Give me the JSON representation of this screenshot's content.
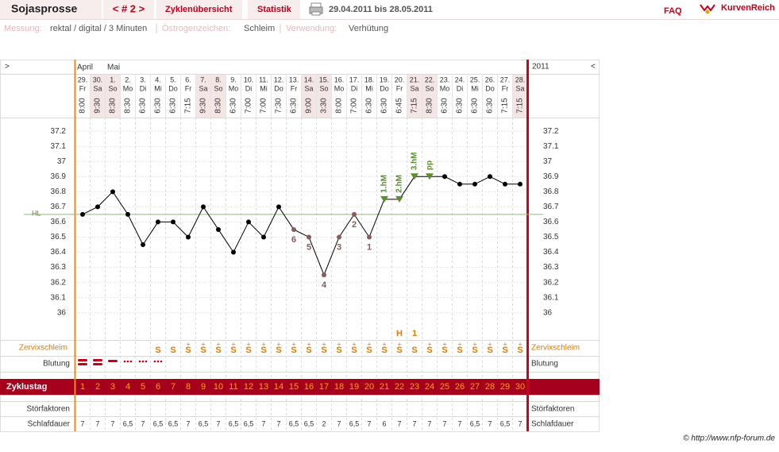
{
  "header": {
    "title": "Sojasprosse",
    "nav": "< # 2 >",
    "tabs": [
      "Zyklenübersicht",
      "Statistik"
    ],
    "range": "29.04.2011 bis 28.05.2011",
    "faq": "FAQ",
    "brand": "KurvenReich"
  },
  "info": [
    {
      "label": "Messung:",
      "value": "rektal / digital / 3 Minuten"
    },
    {
      "label": "Östrogenzeichen:",
      "value": "Schleim"
    },
    {
      "label": "Verwendung:",
      "value": "Verhütung"
    }
  ],
  "chart_data": {
    "type": "line",
    "nav_left": ">",
    "nav_right": "<",
    "year": "2011",
    "months": [
      "April",
      null,
      "Mai",
      null,
      null,
      null,
      null,
      null,
      null,
      null,
      null,
      null,
      null,
      null,
      null,
      null,
      null,
      null,
      null,
      null,
      null,
      null,
      null,
      null,
      null,
      null,
      null,
      null,
      null,
      null
    ],
    "categories": [
      "29.",
      "30.",
      "1.",
      "2.",
      "3.",
      "4.",
      "5.",
      "6.",
      "7.",
      "8.",
      "9.",
      "10.",
      "11.",
      "12.",
      "13.",
      "14.",
      "15.",
      "16.",
      "17.",
      "18.",
      "19.",
      "20.",
      "21.",
      "22.",
      "23.",
      "24.",
      "25.",
      "26.",
      "27.",
      "28."
    ],
    "weekdays": [
      "Fr",
      "Sa",
      "So",
      "Mo",
      "Di",
      "Mi",
      "Do",
      "Fr",
      "Sa",
      "So",
      "Mo",
      "Di",
      "Mi",
      "Do",
      "Fr",
      "Sa",
      "So",
      "Mo",
      "Di",
      "Mi",
      "Do",
      "Fr",
      "Sa",
      "So",
      "Mo",
      "Di",
      "Mi",
      "Do",
      "Fr",
      "Sa"
    ],
    "times": [
      "8:00",
      "9:30",
      "8:30",
      "8:30",
      "6:30",
      "6:30",
      "6:30",
      "7:15",
      "9:30",
      "8:30",
      "6:30",
      "7:00",
      "7:00",
      "7:30",
      "6:30",
      "9:00",
      "3:30",
      "8:00",
      "7:00",
      "6:30",
      "6:30",
      "6:45",
      "7:15",
      "8:30",
      "6:30",
      "6:30",
      "6:30",
      "6:30",
      "7:15",
      "7:15"
    ],
    "values": [
      36.65,
      36.7,
      36.8,
      36.65,
      36.45,
      36.6,
      36.6,
      36.5,
      36.7,
      36.55,
      36.4,
      36.6,
      36.5,
      36.7,
      36.55,
      36.5,
      36.25,
      36.5,
      36.65,
      36.5,
      36.75,
      36.75,
      36.9,
      36.9,
      36.9,
      36.85,
      36.85,
      36.9,
      36.85,
      36.85
    ],
    "point_labels": [
      null,
      null,
      null,
      null,
      null,
      null,
      null,
      null,
      null,
      null,
      null,
      null,
      null,
      null,
      6,
      5,
      4,
      3,
      2,
      1,
      null,
      null,
      null,
      null,
      null,
      null,
      null,
      null,
      null,
      null
    ],
    "markers": [
      null,
      null,
      null,
      null,
      null,
      null,
      null,
      null,
      null,
      null,
      null,
      null,
      null,
      null,
      null,
      null,
      null,
      null,
      null,
      null,
      "1.hM",
      "2.hM",
      "3.hM",
      "pp",
      null,
      null,
      null,
      null,
      null,
      null
    ],
    "color": "#000000",
    "low_color": "#8b5a5a",
    "marker_color": "#5a8f2f",
    "hl": {
      "label": "HL",
      "value": 36.65,
      "color": "#8fbf6f"
    },
    "ylim": [
      35.82,
      37.29
    ],
    "yticks": [
      36,
      36.1,
      36.2,
      36.3,
      36.4,
      36.5,
      36.6,
      36.7,
      36.8,
      36.9,
      37,
      37.1,
      37.2
    ],
    "grid": true
  },
  "rows": {
    "zervix": {
      "label": "Zervixschleim",
      "peak": [
        null,
        null,
        null,
        null,
        null,
        null,
        null,
        null,
        null,
        null,
        null,
        null,
        null,
        null,
        null,
        null,
        null,
        null,
        null,
        null,
        null,
        "H",
        "1",
        null,
        null,
        null,
        null,
        null,
        null,
        null
      ],
      "cells": [
        null,
        null,
        null,
        null,
        null,
        {
          "sign": "S"
        },
        {
          "sign": "S"
        },
        {
          "plus": "+",
          "sign": "S"
        },
        {
          "plus": "+",
          "sign": "S"
        },
        {
          "plus": "+",
          "sign": "S"
        },
        {
          "plus": "+",
          "sign": "S"
        },
        {
          "plus": "+",
          "sign": "S"
        },
        {
          "plus": "+",
          "sign": "S"
        },
        {
          "plus": "+",
          "sign": "S"
        },
        {
          "plus": "+",
          "sign": "S"
        },
        {
          "plus": "+",
          "sign": "S"
        },
        {
          "plus": "+",
          "sign": "S"
        },
        {
          "plus": "+",
          "sign": "S"
        },
        {
          "plus": "+",
          "sign": "S"
        },
        {
          "plus": "+",
          "sign": "S"
        },
        {
          "plus": "+",
          "sign": "S"
        },
        {
          "plus": "+",
          "sign": "S"
        },
        {
          "sign": "S"
        },
        {
          "plus": "+",
          "sign": "S"
        },
        {
          "plus": "+",
          "sign": "S"
        },
        {
          "plus": "+",
          "sign": "S"
        },
        {
          "plus": "+",
          "sign": "S"
        },
        {
          "plus": "+",
          "sign": "S"
        },
        {
          "plus": "+",
          "sign": "S"
        },
        {
          "plus": "+",
          "sign": "S"
        }
      ]
    },
    "blutung": {
      "label": "Blutung"
    },
    "zyklustag": {
      "label": "Zyklustag",
      "values": [
        1,
        2,
        3,
        4,
        5,
        6,
        7,
        8,
        9,
        10,
        11,
        12,
        13,
        14,
        15,
        16,
        17,
        18,
        19,
        20,
        21,
        22,
        23,
        24,
        25,
        26,
        27,
        28,
        29,
        30
      ]
    },
    "stoer": {
      "label": "Störfaktoren"
    },
    "schlaf": {
      "label": "Schlafdauer",
      "values": [
        "7",
        "7",
        "7",
        "6,5",
        "7",
        "6,5",
        "6,5",
        "7",
        "6,5",
        "7",
        "6,5",
        "6,5",
        "7",
        "7",
        "6,5",
        "6,5",
        "2",
        "7",
        "6,5",
        "7",
        "6",
        "7",
        "7",
        "7",
        "7",
        "7",
        "6,5",
        "7",
        "6,5",
        "7"
      ]
    }
  },
  "footer": "© http://www.nfp-forum.de"
}
